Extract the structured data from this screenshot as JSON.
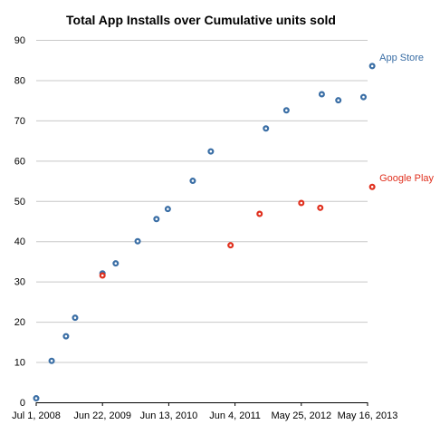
{
  "chart_data": {
    "type": "scatter",
    "title": "Total App Installs over Cumulative units sold",
    "xlabel": "",
    "ylabel": "",
    "ylim": [
      0,
      90
    ],
    "y_ticks": [
      0,
      10,
      20,
      30,
      40,
      50,
      60,
      70,
      80,
      90
    ],
    "xlim": [
      "2008-07-01",
      "2013-05-16"
    ],
    "x_ticks": [
      {
        "date": "2008-07-01",
        "label": "Jul 1, 2008"
      },
      {
        "date": "2009-06-22",
        "label": "Jun 22, 2009"
      },
      {
        "date": "2010-06-13",
        "label": "Jun 13, 2010"
      },
      {
        "date": "2011-06-04",
        "label": "Jun 4, 2011"
      },
      {
        "date": "2012-05-25",
        "label": "May 25, 2012"
      },
      {
        "date": "2013-05-16",
        "label": "May 16, 2013"
      }
    ],
    "grid": true,
    "series": [
      {
        "name": "App Store",
        "color": "#3a6ea5",
        "points": [
          {
            "x": "2008-07-01",
            "y": 1
          },
          {
            "x": "2008-09-22",
            "y": 10.3
          },
          {
            "x": "2008-12-08",
            "y": 16.4
          },
          {
            "x": "2009-01-26",
            "y": 21
          },
          {
            "x": "2009-06-22",
            "y": 32
          },
          {
            "x": "2009-09-01",
            "y": 34.5
          },
          {
            "x": "2009-12-28",
            "y": 40
          },
          {
            "x": "2010-04-08",
            "y": 45.5
          },
          {
            "x": "2010-06-08",
            "y": 48
          },
          {
            "x": "2010-10-20",
            "y": 55
          },
          {
            "x": "2011-01-25",
            "y": 62.3
          },
          {
            "x": "2011-11-17",
            "y": 68
          },
          {
            "x": "2012-03-06",
            "y": 72.5
          },
          {
            "x": "2012-09-12",
            "y": 76.5
          },
          {
            "x": "2012-12-10",
            "y": 75
          },
          {
            "x": "2013-04-24",
            "y": 75.8
          },
          {
            "x": "2013-06-10",
            "y": 83.5
          }
        ]
      },
      {
        "name": "Google Play",
        "color": "#e0301e",
        "points": [
          {
            "x": "2009-06-22",
            "y": 31.5
          },
          {
            "x": "2011-05-11",
            "y": 39
          },
          {
            "x": "2011-10-14",
            "y": 46.8
          },
          {
            "x": "2012-05-25",
            "y": 49.5
          },
          {
            "x": "2012-09-04",
            "y": 48.3
          },
          {
            "x": "2013-06-10",
            "y": 53.5
          }
        ]
      }
    ]
  }
}
